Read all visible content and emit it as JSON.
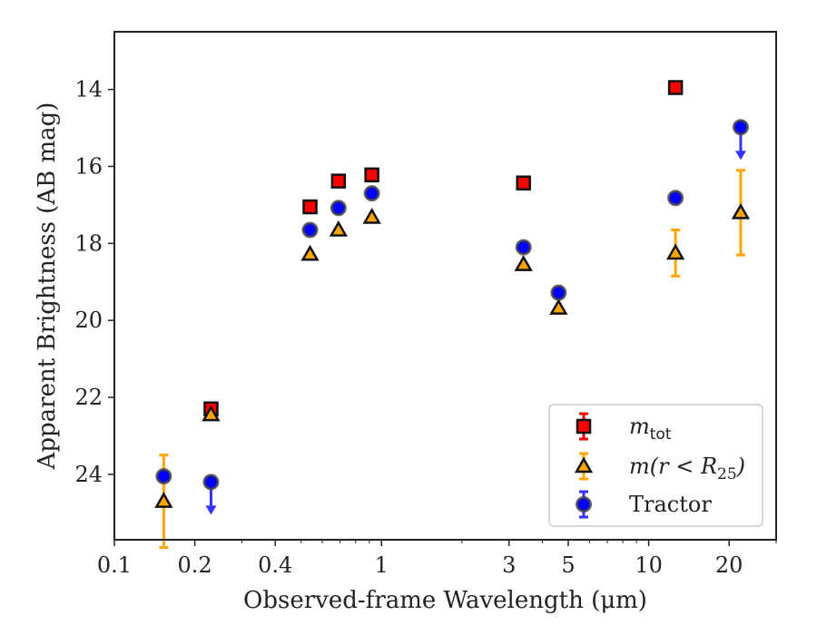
{
  "chart_data": {
    "type": "scatter",
    "xlabel": "Observed-frame Wavelength (μm)",
    "ylabel": "Apparent Brightness (AB mag)",
    "xscale": "log",
    "xlim": [
      0.1,
      30
    ],
    "ylim": [
      25.7,
      12.5
    ],
    "y_inverted": true,
    "grid": false,
    "legend_position": "lower-right",
    "x_ticks": [
      {
        "value": 0.1,
        "label": "0.1"
      },
      {
        "value": 0.2,
        "label": "0.2"
      },
      {
        "value": 0.4,
        "label": "0.4"
      },
      {
        "value": 1,
        "label": "1"
      },
      {
        "value": 3,
        "label": "3"
      },
      {
        "value": 5,
        "label": "5"
      },
      {
        "value": 10,
        "label": "10"
      },
      {
        "value": 20,
        "label": "20"
      }
    ],
    "y_ticks": [
      {
        "value": 14,
        "label": "14"
      },
      {
        "value": 16,
        "label": "16"
      },
      {
        "value": 18,
        "label": "18"
      },
      {
        "value": 20,
        "label": "20"
      },
      {
        "value": 22,
        "label": "22"
      },
      {
        "value": 24,
        "label": "24"
      }
    ],
    "series": [
      {
        "name_main": "m",
        "name_sub": "tot",
        "marker": "square",
        "color": "#ff0000",
        "errcolor": "#ee0000",
        "points": [
          {
            "x": 0.23,
            "y": 22.3,
            "err": 0.1
          },
          {
            "x": 0.54,
            "y": 17.05
          },
          {
            "x": 0.69,
            "y": 16.38
          },
          {
            "x": 0.92,
            "y": 16.22
          },
          {
            "x": 3.4,
            "y": 16.43
          },
          {
            "x": 12.6,
            "y": 13.95
          }
        ]
      },
      {
        "name_pre": "m(r < R",
        "name_sub": "25",
        "name_post": ")",
        "marker": "triangle",
        "color": "#ffa500",
        "errcolor": "#ffa500",
        "points": [
          {
            "x": 0.153,
            "y": 24.7,
            "err": 1.2
          },
          {
            "x": 0.23,
            "y": 22.45
          },
          {
            "x": 0.54,
            "y": 18.28
          },
          {
            "x": 0.69,
            "y": 17.65
          },
          {
            "x": 0.92,
            "y": 17.32
          },
          {
            "x": 3.4,
            "y": 18.55
          },
          {
            "x": 4.6,
            "y": 19.68
          },
          {
            "x": 12.6,
            "y": 18.25,
            "err": 0.6
          },
          {
            "x": 22.1,
            "y": 17.2,
            "err": 1.1
          }
        ]
      },
      {
        "name": "Tractor",
        "marker": "circle",
        "color": "#0000ff",
        "errcolor": "#3333ff",
        "points": [
          {
            "x": 0.153,
            "y": 24.05
          },
          {
            "x": 0.23,
            "y": 24.2,
            "upper_limit": true
          },
          {
            "x": 0.54,
            "y": 17.65
          },
          {
            "x": 0.69,
            "y": 17.08
          },
          {
            "x": 0.92,
            "y": 16.7
          },
          {
            "x": 3.4,
            "y": 18.1
          },
          {
            "x": 4.6,
            "y": 19.28
          },
          {
            "x": 12.6,
            "y": 16.82
          },
          {
            "x": 22.1,
            "y": 14.98,
            "upper_limit": true
          }
        ]
      }
    ]
  }
}
